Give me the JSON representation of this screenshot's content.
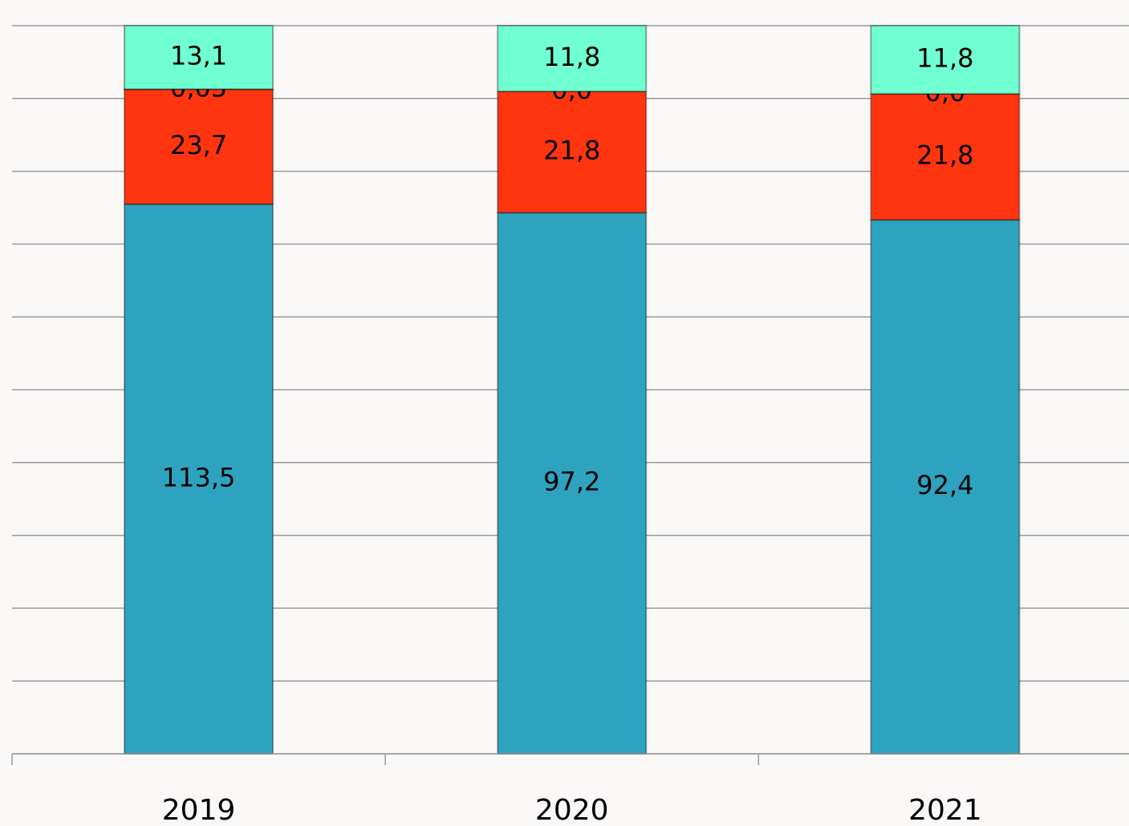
{
  "chart_data": {
    "type": "bar",
    "stacking": "percent",
    "categories": [
      "2019",
      "2020",
      "2021"
    ],
    "series": [
      {
        "color": "#2ea3c0",
        "values": [
          113.5,
          97.2,
          92.4
        ],
        "value_labels": [
          "113,5",
          "97,2",
          "92,4"
        ]
      },
      {
        "color": "#ff3510",
        "values": [
          23.7,
          21.8,
          21.8
        ],
        "value_labels": [
          "23,7",
          "21,8",
          "21,8"
        ]
      },
      {
        "color": "#9b6fd0",
        "values": [
          0.05,
          0.0,
          0.0
        ],
        "value_labels": [
          "0,05",
          "0,0",
          "0,0"
        ]
      },
      {
        "color": "#70ffd0",
        "values": [
          13.1,
          11.8,
          11.8
        ],
        "value_labels": [
          "13,1",
          "11,8",
          "11,8"
        ]
      }
    ],
    "ylim": [
      0,
      100
    ],
    "yticks": [
      0,
      10,
      20,
      30,
      40,
      50,
      60,
      70,
      80,
      90,
      100
    ],
    "grid": true
  }
}
